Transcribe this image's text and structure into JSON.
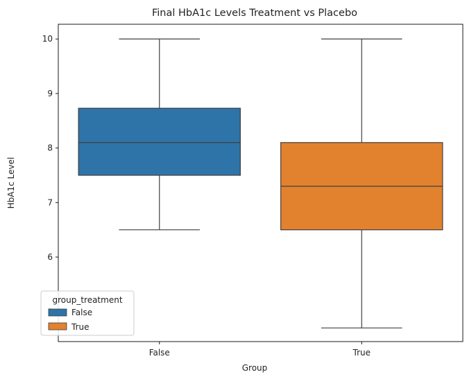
{
  "chart_data": {
    "type": "box",
    "title": "Final HbA1c Levels Treatment vs Placebo",
    "xlabel": "Group",
    "ylabel": "HbA1c Level",
    "categories": [
      "False",
      "True"
    ],
    "ylim": [
      4.45,
      10.27
    ],
    "yticks": [
      5,
      6,
      7,
      8,
      9,
      10
    ],
    "grid": false,
    "series": [
      {
        "name": "False",
        "color": "#2e74a9",
        "whisker_low": 6.5,
        "q1": 7.5,
        "median": 8.1,
        "q3": 8.73,
        "whisker_high": 10.0
      },
      {
        "name": "True",
        "color": "#e2822e",
        "whisker_low": 4.7,
        "q1": 6.5,
        "median": 7.3,
        "q3": 8.1,
        "whisker_high": 10.0
      }
    ],
    "legend": {
      "title": "group_treatment",
      "placement": "lower-left",
      "entries": [
        "False",
        "True"
      ]
    }
  }
}
